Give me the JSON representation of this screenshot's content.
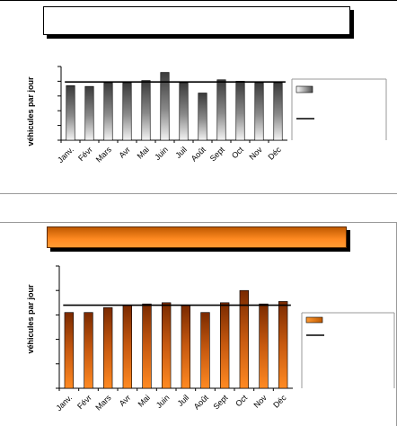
{
  "chart_data": [
    {
      "type": "bar",
      "title": "",
      "ylabel": "véhicules par jour",
      "categories": [
        "Janv.",
        "Févr",
        "Mars",
        "Avr",
        "Mai",
        "Juin",
        "Juil",
        "Août",
        "Sept",
        "Oct",
        "Nov",
        "Déc"
      ],
      "series": [
        {
          "values": [
            74,
            73,
            78,
            78,
            81,
            92,
            78,
            64,
            82,
            80,
            78,
            78
          ]
        },
        {
          "values": [
            79,
            79,
            79,
            79,
            79,
            79,
            79,
            79,
            79,
            79,
            79,
            79
          ]
        }
      ],
      "ylim": [
        0,
        100
      ],
      "legend": "right",
      "bar_color": "#4a4a4a"
    },
    {
      "type": "bar",
      "title": "",
      "ylabel": "véhicules par jour",
      "categories": [
        "Janv.",
        "Févr",
        "Mars",
        "Avr",
        "Mai",
        "Juin",
        "Juil",
        "Août",
        "Sept",
        "Oct",
        "Nov",
        "Déc"
      ],
      "series": [
        {
          "values": [
            62,
            62,
            66,
            68,
            69,
            70,
            68,
            62,
            70,
            80,
            69,
            71
          ]
        },
        {
          "values": [
            68,
            68,
            68,
            68,
            68,
            68,
            68,
            68,
            68,
            68,
            68,
            68
          ]
        }
      ],
      "ylim": [
        0,
        100
      ],
      "legend": "right",
      "bar_color": "#c05a00"
    }
  ]
}
